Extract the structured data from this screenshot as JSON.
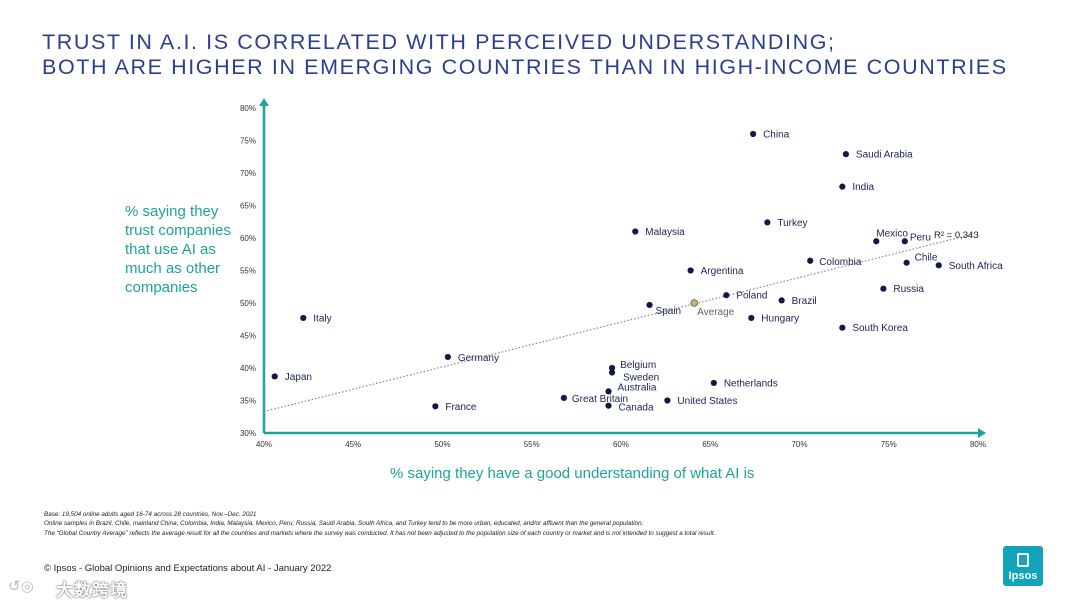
{
  "title": {
    "line1": "TRUST IN A.I. IS CORRELATED WITH PERCEIVED UNDERSTANDING;",
    "line2": "BOTH ARE HIGHER IN EMERGING COUNTRIES THAN IN HIGH-INCOME COUNTRIES"
  },
  "colors": {
    "title": "#2a3f8f",
    "accent": "#1fa39a",
    "point": "#0f1a4a",
    "average_point": "#c9b36b",
    "logo": "#12a5b9"
  },
  "chart_data": {
    "type": "scatter",
    "ylabel": "% saying they trust companies that use AI as much as other companies",
    "xlabel": "% saying they have a good understanding of what AI is",
    "xlim": [
      40,
      80
    ],
    "ylim": [
      30,
      80
    ],
    "x_ticks": [
      "40%",
      "45%",
      "50%",
      "55%",
      "60%",
      "65%",
      "70%",
      "75%",
      "80%"
    ],
    "y_ticks": [
      "30%",
      "35%",
      "40%",
      "45%",
      "50%",
      "55%",
      "60%",
      "65%",
      "70%",
      "75%",
      "80%"
    ],
    "trendline": {
      "from": [
        40,
        33.3
      ],
      "to": [
        80,
        60.8
      ],
      "r2_label": "R² = 0,343"
    },
    "points": [
      {
        "label": "China",
        "x": 67.4,
        "y": 76.0
      },
      {
        "label": "Saudi Arabia",
        "x": 72.6,
        "y": 72.9
      },
      {
        "label": "India",
        "x": 72.4,
        "y": 67.9
      },
      {
        "label": "Turkey",
        "x": 68.2,
        "y": 62.4
      },
      {
        "label": "Malaysia",
        "x": 60.8,
        "y": 61.0
      },
      {
        "label": "Mexico",
        "x": 74.3,
        "y": 59.5
      },
      {
        "label": "Peru",
        "x": 75.9,
        "y": 59.5
      },
      {
        "label": "Colombia",
        "x": 70.6,
        "y": 56.5
      },
      {
        "label": "Chile",
        "x": 76.0,
        "y": 56.2
      },
      {
        "label": "South Africa",
        "x": 77.8,
        "y": 55.8
      },
      {
        "label": "Argentina",
        "x": 63.9,
        "y": 55.0
      },
      {
        "label": "Russia",
        "x": 74.7,
        "y": 52.2
      },
      {
        "label": "Poland",
        "x": 65.9,
        "y": 51.2
      },
      {
        "label": "Brazil",
        "x": 69.0,
        "y": 50.4
      },
      {
        "label": "Spain",
        "x": 61.6,
        "y": 49.7
      },
      {
        "label": "Hungary",
        "x": 67.3,
        "y": 47.7
      },
      {
        "label": "South Korea",
        "x": 72.4,
        "y": 46.2
      },
      {
        "label": "Italy",
        "x": 42.2,
        "y": 47.7
      },
      {
        "label": "Germany",
        "x": 50.3,
        "y": 41.7
      },
      {
        "label": "Belgium",
        "x": 59.5,
        "y": 40.0
      },
      {
        "label": "Sweden",
        "x": 59.5,
        "y": 39.3
      },
      {
        "label": "Japan",
        "x": 40.6,
        "y": 38.7
      },
      {
        "label": "Netherlands",
        "x": 65.2,
        "y": 37.7
      },
      {
        "label": "Australia",
        "x": 59.3,
        "y": 36.4
      },
      {
        "label": "Great Britain",
        "x": 56.8,
        "y": 35.4
      },
      {
        "label": "United States",
        "x": 62.6,
        "y": 35.0
      },
      {
        "label": "France",
        "x": 49.6,
        "y": 34.1
      },
      {
        "label": "Canada",
        "x": 59.3,
        "y": 34.2
      },
      {
        "label": "Average",
        "x": 64.1,
        "y": 50.0,
        "average": true
      }
    ]
  },
  "notes": {
    "base": "Base: 19,504 online adults aged 16-74 across 28 countries, Nov.–Dec. 2021",
    "samples": "Online samples in Brazil, Chile, mainland China, Colombia, India, Malaysia, Mexico, Peru, Russia, Saudi Arabia, South Africa, and Turkey tend to be more urban, educated, and/or affluent than the general population.",
    "average": "The “Global  Country Average” reflects the average result for all the countries and markets where the survey was conducted. It has not been adjusted to the population size of each country or market and is not intended to suggest a total result."
  },
  "footer": "© Ipsos - Global Opinions and Expectations about AI - January 2022",
  "logo_text": "Ipsos",
  "watermark": "大数跨境"
}
